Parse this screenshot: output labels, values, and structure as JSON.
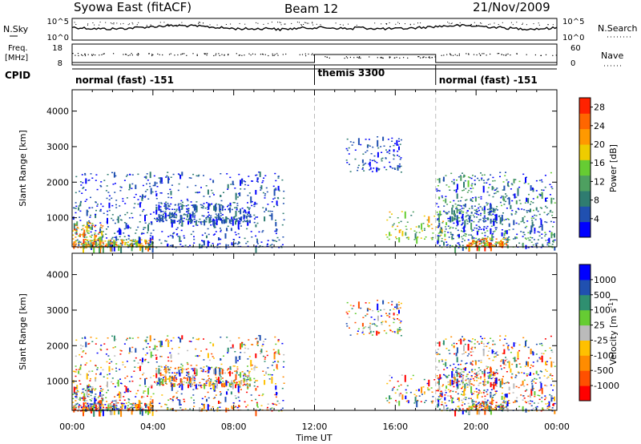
{
  "header": {
    "station": "Syowa East (fitACF)",
    "beam": "Beam 12",
    "date": "21/Nov/2009"
  },
  "top_panels": {
    "nsky_label": "N.Sky",
    "nsky_ticks": [
      "10^5",
      "10^0"
    ],
    "nsearch_label": "N.Search",
    "nsearch_ticks": [
      "10^5",
      "10^0"
    ],
    "freq_label_1": "Freq.",
    "freq_label_2": "[MHz]",
    "freq_ticks": [
      "18",
      "8"
    ],
    "nave_label": "Nave",
    "nave_ticks": [
      "60",
      "0"
    ],
    "cpid_label": "CPID"
  },
  "cpid_segments": [
    {
      "label": "normal (fast) -151",
      "start_h": 0,
      "end_h": 12
    },
    {
      "label": "themis 3300",
      "start_h": 12,
      "end_h": 18
    },
    {
      "label": "normal (fast) -151",
      "start_h": 18,
      "end_h": 24
    }
  ],
  "colors": {
    "power": [
      "#0000ff",
      "#2050b0",
      "#2f7c70",
      "#4ea060",
      "#66cc33",
      "#eecc00",
      "#ff9900",
      "#ff6600",
      "#ff2200"
    ],
    "velocity": [
      "#ff0000",
      "#ff5000",
      "#ff8c00",
      "#ffc000",
      "#bbbbbb",
      "#66cc33",
      "#2f8f70",
      "#2050b0",
      "#0000ff"
    ]
  },
  "chart_data": [
    {
      "type": "heatmap",
      "panel": "power",
      "ylabel": "Slant Range [km]",
      "yticks": [
        "1000",
        "2000",
        "3000",
        "4000"
      ],
      "yticks_values": [
        1000,
        2000,
        3000,
        4000
      ],
      "ylim": [
        180,
        4600
      ],
      "xlim_hours": [
        0,
        24
      ],
      "colorbar_label": "Power [dB]",
      "colorbar_ticks": [
        "4",
        "8",
        "12",
        "16",
        "20",
        "24",
        "28"
      ],
      "colorbar_values": [
        4,
        8,
        12,
        16,
        20,
        24,
        28
      ],
      "colorbar_range": [
        0,
        30
      ]
    },
    {
      "type": "heatmap",
      "panel": "velocity",
      "ylabel": "Slant Range [km]",
      "yticks": [
        "1000",
        "2000",
        "3000",
        "4000"
      ],
      "yticks_values": [
        1000,
        2000,
        3000,
        4000
      ],
      "ylim": [
        180,
        4600
      ],
      "xlim_hours": [
        0,
        24
      ],
      "xlabel": "Time UT",
      "xticks": [
        "00:00",
        "04:00",
        "08:00",
        "12:00",
        "16:00",
        "20:00",
        "00:00"
      ],
      "xticks_hours": [
        0,
        4,
        8,
        12,
        16,
        20,
        24
      ],
      "colorbar_label": "Velocity [m s",
      "colorbar_label_sup": "-1",
      "colorbar_label_close": "]",
      "colorbar_ticks": [
        "1000",
        "500",
        "100",
        "25",
        "-25",
        "-100",
        "-500",
        "-1000"
      ]
    }
  ]
}
